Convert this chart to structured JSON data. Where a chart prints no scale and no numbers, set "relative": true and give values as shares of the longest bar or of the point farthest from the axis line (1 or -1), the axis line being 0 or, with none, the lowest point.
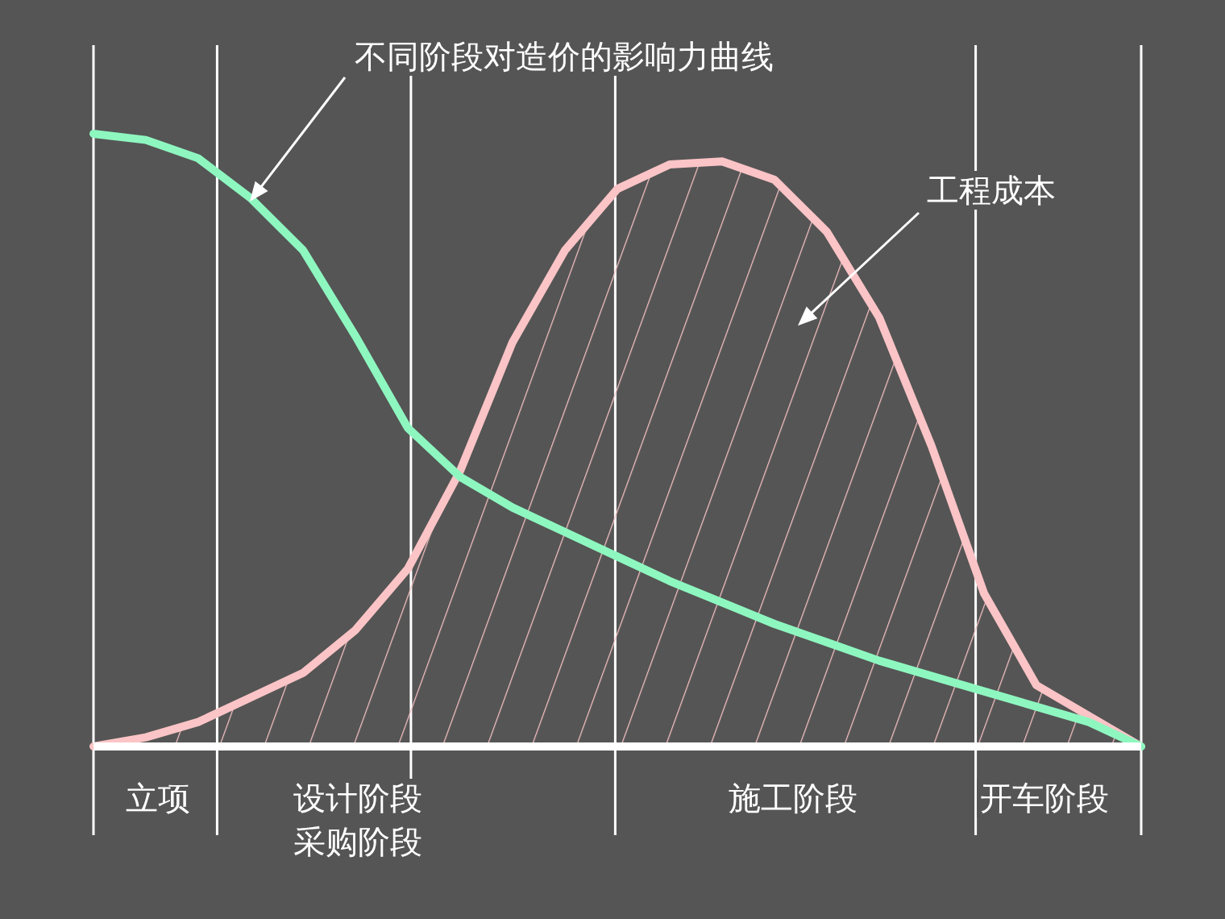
{
  "chart_data": {
    "type": "line",
    "relative": true,
    "marker": "none",
    "line_style": "solid",
    "categories": [
      null,
      null,
      null,
      null,
      null,
      null,
      null,
      null,
      null,
      null,
      null,
      null,
      null,
      null,
      null,
      null,
      null,
      null,
      null,
      null,
      null
    ],
    "series": [
      {
        "color": "#8ef7c0",
        "values": [
          1.0,
          0.99,
          0.96,
          0.895,
          0.81,
          0.67,
          0.52,
          0.44,
          0.39,
          0.35,
          0.31,
          0.27,
          0.235,
          0.2,
          0.17,
          0.14,
          0.115,
          0.09,
          0.065,
          0.04,
          0
        ]
      },
      {
        "type": "area",
        "color": "#fbc4c6",
        "values": [
          0,
          0.015,
          0.04,
          0.08,
          0.12,
          0.19,
          0.29,
          0.45,
          0.66,
          0.81,
          0.91,
          0.95,
          0.955,
          0.925,
          0.84,
          0.7,
          0.49,
          0.25,
          0.1,
          0.05,
          0
        ]
      }
    ],
    "annotations": [
      "不同阶段对造价的影响力曲线",
      "工程成本",
      "立项",
      "设计阶段采购阶段",
      "施工阶段",
      "开车阶段"
    ]
  }
}
